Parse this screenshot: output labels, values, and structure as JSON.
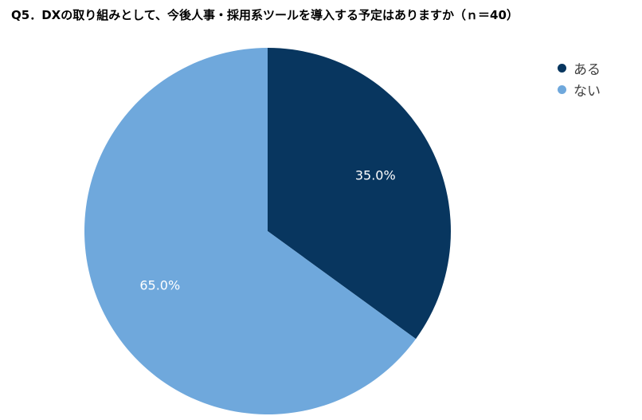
{
  "chart_data": {
    "type": "pie",
    "title": "Q5．DXの取り組みとして、今後人事・採用系ツールを導入する予定はありますか（ｎ＝40）",
    "slices": [
      {
        "label": "ある",
        "value": 35.0,
        "display": "35.0%",
        "color": "#08365f"
      },
      {
        "label": "ない",
        "value": 65.0,
        "display": "65.0%",
        "color": "#6fa8dc"
      }
    ],
    "legend_position": "top-right",
    "start_angle": "12 o'clock",
    "direction": "clockwise"
  }
}
